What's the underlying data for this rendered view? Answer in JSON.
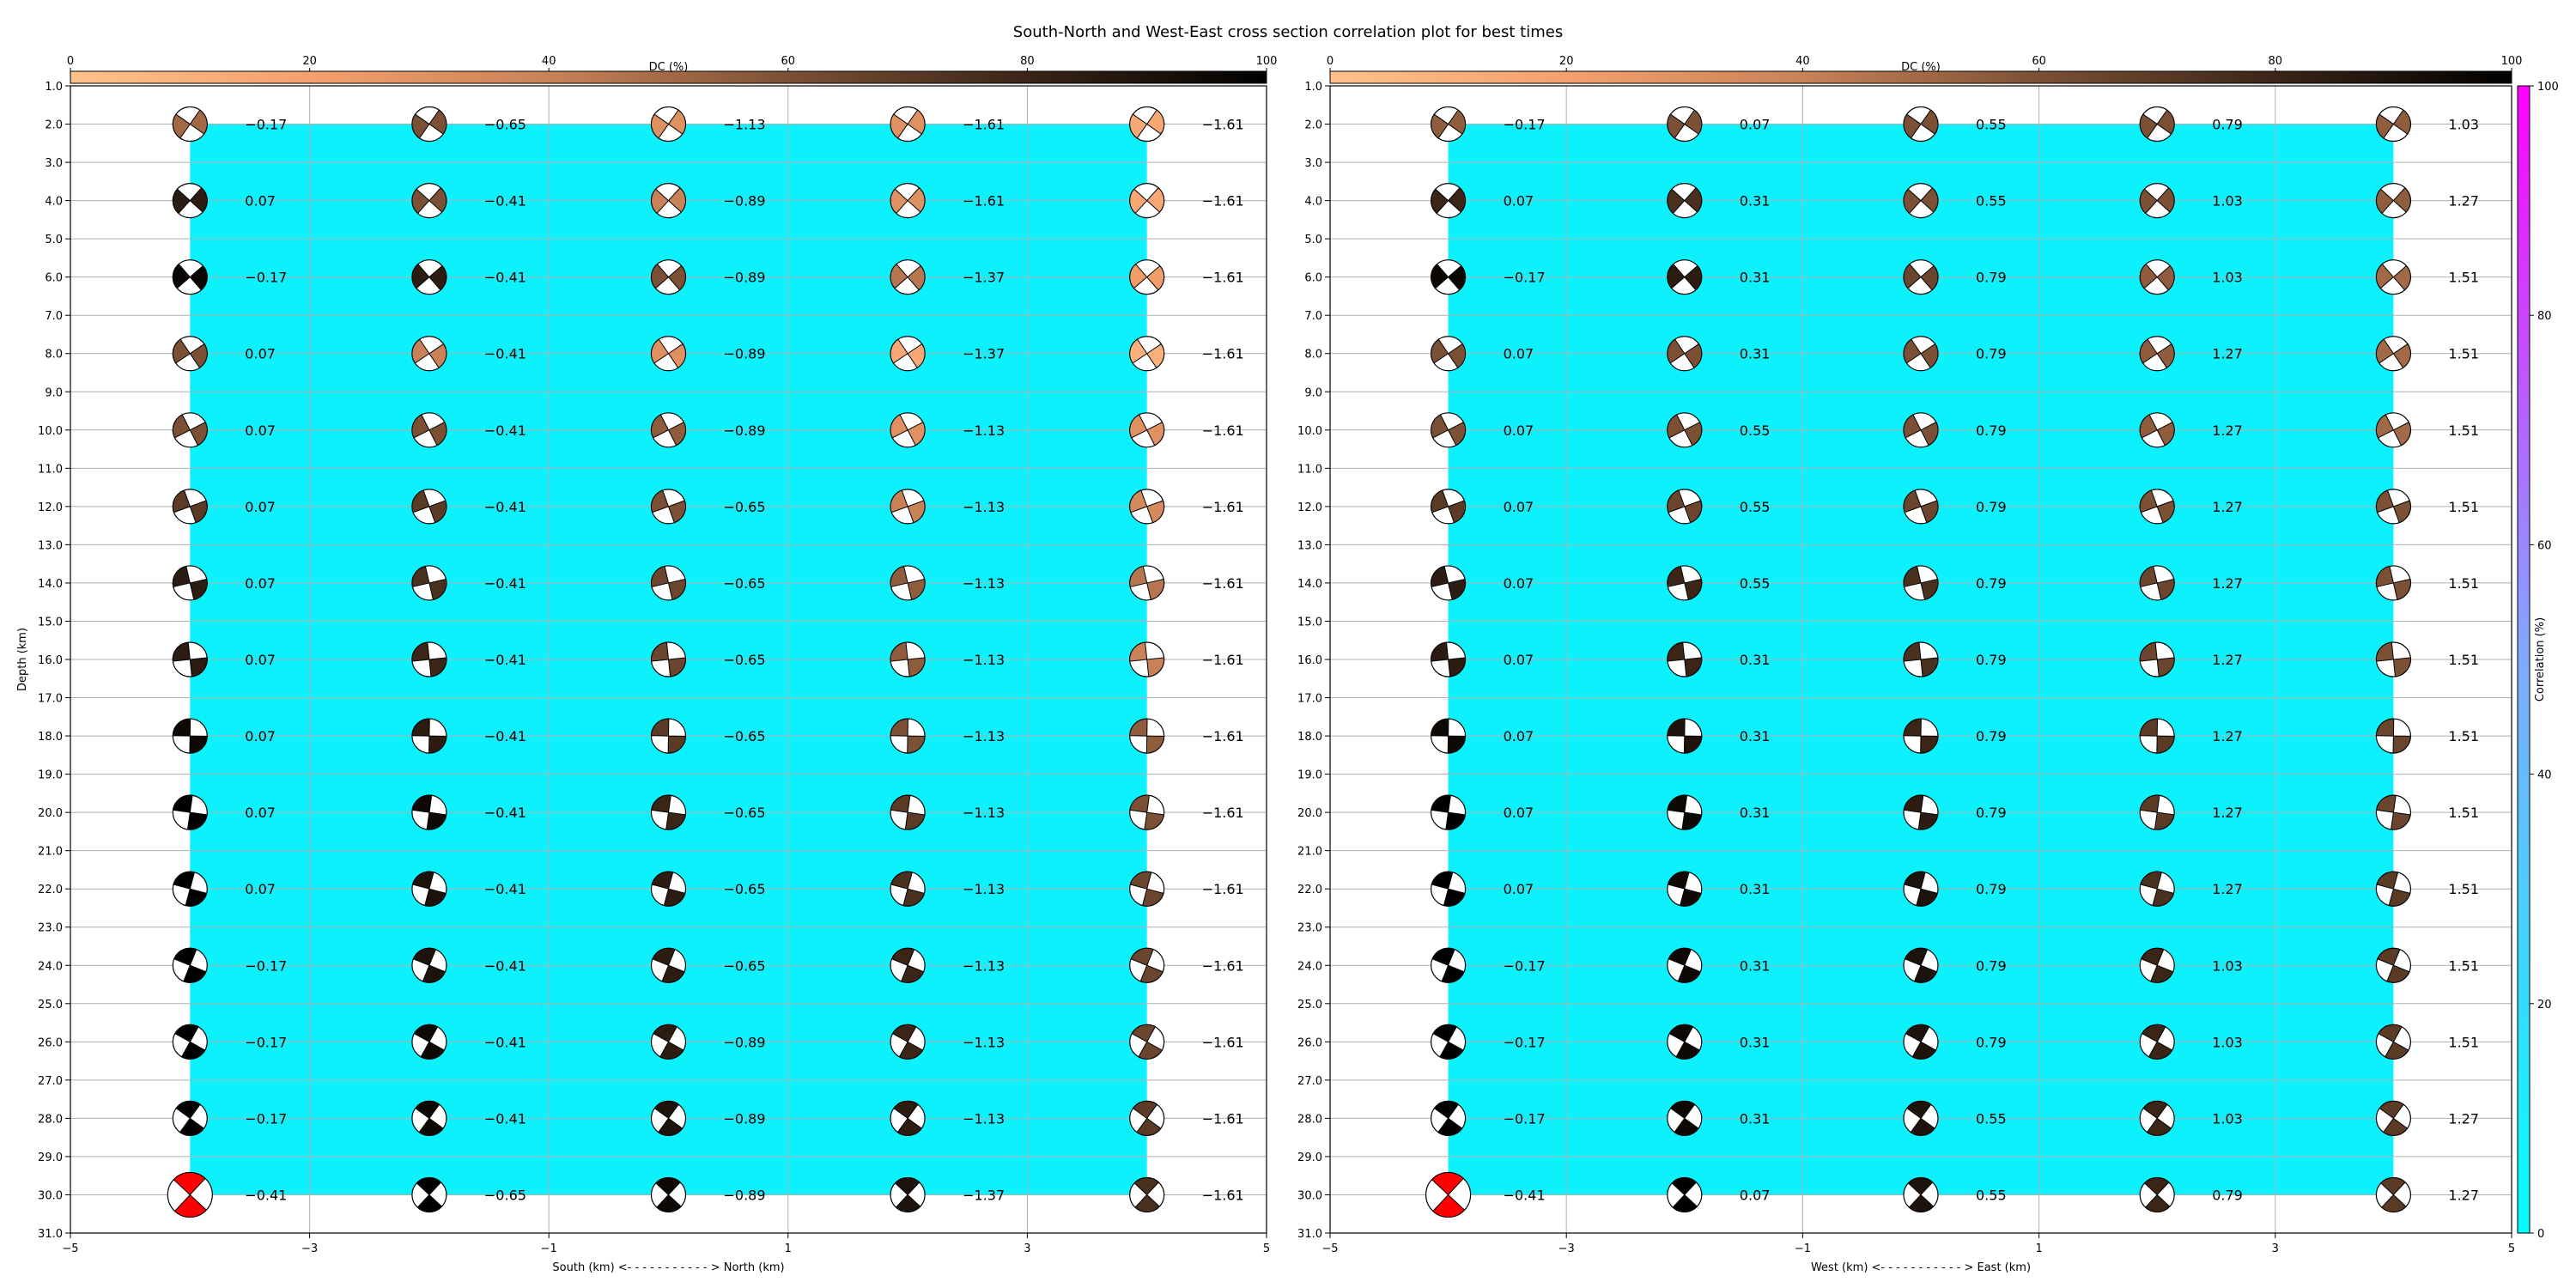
{
  "figure": {
    "title": "South-North and West-East cross section correlation plot for best times"
  },
  "colors": {
    "background_fill": "#0cf1fb",
    "grid": "#b0b0b0",
    "dc_colormap": [
      "#ffc18a",
      "#f5a06c",
      "#c98257",
      "#7b5035",
      "#3a2517",
      "#000000"
    ],
    "correlation_colormap": [
      "#00ffff",
      "#80aaff",
      "#ff00ff"
    ],
    "best_solution": "#ff0000"
  },
  "dc_colorbar": {
    "label": "DC (%)",
    "ticks": [
      0,
      20,
      40,
      60,
      80,
      100
    ]
  },
  "correlation_colorbar": {
    "label": "Correlation (%)",
    "ticks": [
      0,
      20,
      40,
      60,
      80,
      100
    ]
  },
  "chart_data": [
    {
      "type": "scatter",
      "subtype": "focal-mechanism grid",
      "xlabel": "South (km) <- - - - - - - - - - - > North (km)",
      "ylabel": "Depth (km)",
      "xlim": [
        -5,
        5
      ],
      "ylim": [
        31,
        1
      ],
      "xticks": [
        -5,
        -3,
        -1,
        1,
        3,
        5
      ],
      "yticks": [
        1,
        2,
        3,
        4,
        5,
        6,
        7,
        8,
        9,
        10,
        11,
        12,
        13,
        14,
        15,
        16,
        17,
        18,
        19,
        20,
        21,
        22,
        23,
        24,
        25,
        26,
        27,
        28,
        29,
        30,
        31
      ],
      "x": [
        -4,
        -2,
        0,
        2,
        4
      ],
      "depths": [
        2,
        4,
        6,
        8,
        10,
        12,
        14,
        16,
        18,
        20,
        22,
        24,
        26,
        28,
        30
      ],
      "correlation_fill": {
        "x": [
          -4,
          4
        ],
        "depth": [
          2,
          30
        ]
      },
      "values": [
        [
          -0.17,
          -0.65,
          -1.13,
          -1.61,
          -1.61
        ],
        [
          0.07,
          -0.41,
          -0.89,
          -1.61,
          -1.61
        ],
        [
          -0.17,
          -0.41,
          -0.89,
          -1.37,
          -1.61
        ],
        [
          0.07,
          -0.41,
          -0.89,
          -1.37,
          -1.61
        ],
        [
          0.07,
          -0.41,
          -0.89,
          -1.13,
          -1.61
        ],
        [
          0.07,
          -0.41,
          -0.65,
          -1.13,
          -1.61
        ],
        [
          0.07,
          -0.41,
          -0.65,
          -1.13,
          -1.61
        ],
        [
          0.07,
          -0.41,
          -0.65,
          -1.13,
          -1.61
        ],
        [
          0.07,
          -0.41,
          -0.65,
          -1.13,
          -1.61
        ],
        [
          0.07,
          -0.41,
          -0.65,
          -1.13,
          -1.61
        ],
        [
          0.07,
          -0.41,
          -0.65,
          -1.13,
          -1.61
        ],
        [
          -0.17,
          -0.41,
          -0.65,
          -1.13,
          -1.61
        ],
        [
          -0.17,
          -0.41,
          -0.89,
          -1.13,
          -1.61
        ],
        [
          -0.17,
          -0.41,
          -0.89,
          -1.13,
          -1.61
        ],
        [
          -0.41,
          -0.65,
          -0.89,
          -1.37,
          -1.61
        ]
      ],
      "dc_percent": [
        [
          50,
          60,
          30,
          30,
          15
        ],
        [
          85,
          60,
          40,
          30,
          15
        ],
        [
          97,
          85,
          60,
          45,
          22
        ],
        [
          60,
          40,
          30,
          15,
          10
        ],
        [
          60,
          60,
          55,
          30,
          30
        ],
        [
          70,
          70,
          60,
          40,
          35
        ],
        [
          85,
          75,
          65,
          55,
          45
        ],
        [
          85,
          80,
          65,
          55,
          40
        ],
        [
          95,
          85,
          70,
          60,
          55
        ],
        [
          100,
          95,
          80,
          70,
          60
        ],
        [
          100,
          90,
          85,
          75,
          65
        ],
        [
          100,
          90,
          85,
          80,
          65
        ],
        [
          100,
          95,
          85,
          80,
          65
        ],
        [
          100,
          95,
          90,
          85,
          70
        ],
        [
          100,
          100,
          95,
          90,
          75
        ]
      ],
      "best": {
        "x": -4,
        "depth": 30
      }
    },
    {
      "type": "scatter",
      "subtype": "focal-mechanism grid",
      "xlabel": "West (km) <- - - - - - - - - - - > East (km)",
      "ylabel": "",
      "xlim": [
        -5,
        5
      ],
      "ylim": [
        31,
        1
      ],
      "xticks": [
        -5,
        -3,
        -1,
        1,
        3,
        5
      ],
      "yticks": [
        1,
        2,
        3,
        4,
        5,
        6,
        7,
        8,
        9,
        10,
        11,
        12,
        13,
        14,
        15,
        16,
        17,
        18,
        19,
        20,
        21,
        22,
        23,
        24,
        25,
        26,
        27,
        28,
        29,
        30,
        31
      ],
      "x": [
        -4,
        -2,
        0,
        2,
        4
      ],
      "depths": [
        2,
        4,
        6,
        8,
        10,
        12,
        14,
        16,
        18,
        20,
        22,
        24,
        26,
        28,
        30
      ],
      "correlation_fill": {
        "x": [
          -4,
          4
        ],
        "depth": [
          2,
          30
        ]
      },
      "values": [
        [
          -0.17,
          0.07,
          0.55,
          0.79,
          1.03
        ],
        [
          0.07,
          0.31,
          0.55,
          1.03,
          1.27
        ],
        [
          -0.17,
          0.31,
          0.79,
          1.03,
          1.51
        ],
        [
          0.07,
          0.31,
          0.79,
          1.27,
          1.51
        ],
        [
          0.07,
          0.55,
          0.79,
          1.27,
          1.51
        ],
        [
          0.07,
          0.55,
          0.79,
          1.27,
          1.51
        ],
        [
          0.07,
          0.55,
          0.79,
          1.27,
          1.51
        ],
        [
          0.07,
          0.31,
          0.79,
          1.27,
          1.51
        ],
        [
          0.07,
          0.31,
          0.79,
          1.27,
          1.51
        ],
        [
          0.07,
          0.31,
          0.79,
          1.27,
          1.51
        ],
        [
          0.07,
          0.31,
          0.79,
          1.27,
          1.51
        ],
        [
          -0.17,
          0.31,
          0.79,
          1.03,
          1.51
        ],
        [
          -0.17,
          0.31,
          0.79,
          1.03,
          1.51
        ],
        [
          -0.17,
          0.31,
          0.55,
          1.03,
          1.27
        ],
        [
          -0.41,
          0.07,
          0.55,
          0.79,
          1.27
        ]
      ],
      "dc_percent": [
        [
          55,
          60,
          60,
          60,
          55
        ],
        [
          80,
          75,
          60,
          60,
          55
        ],
        [
          97,
          85,
          65,
          55,
          50
        ],
        [
          60,
          60,
          60,
          55,
          50
        ],
        [
          60,
          60,
          60,
          55,
          50
        ],
        [
          70,
          65,
          65,
          60,
          60
        ],
        [
          85,
          80,
          75,
          65,
          60
        ],
        [
          85,
          80,
          75,
          65,
          60
        ],
        [
          95,
          90,
          80,
          70,
          65
        ],
        [
          100,
          95,
          85,
          70,
          65
        ],
        [
          100,
          95,
          90,
          75,
          70
        ],
        [
          100,
          95,
          90,
          80,
          70
        ],
        [
          100,
          95,
          90,
          80,
          70
        ],
        [
          100,
          95,
          90,
          80,
          70
        ],
        [
          100,
          100,
          90,
          80,
          70
        ]
      ],
      "best": {
        "x": -4,
        "depth": 30
      }
    }
  ]
}
